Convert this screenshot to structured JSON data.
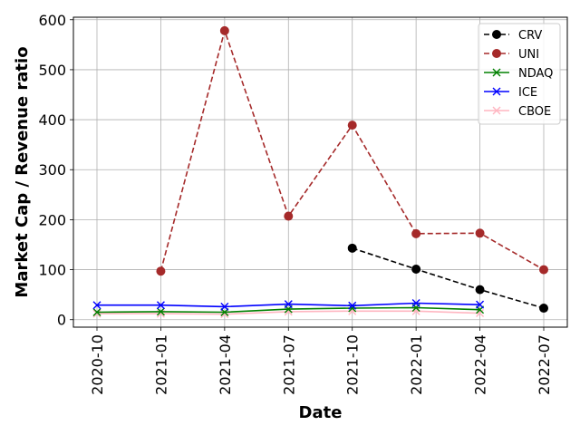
{
  "chart_data": {
    "type": "line",
    "title": "",
    "xlabel": "Date",
    "ylabel": "Market Cap / Revenue ratio",
    "x_ticks": [
      "2020-10",
      "2021-01",
      "2021-04",
      "2021-07",
      "2021-10",
      "2022-01",
      "2022-04",
      "2022-07"
    ],
    "y_ticks": [
      0,
      100,
      200,
      300,
      400,
      500,
      600
    ],
    "xlim": [
      "2020-10",
      "2022-07"
    ],
    "ylim": [
      -15,
      605
    ],
    "grid": true,
    "legend_position": "top-right",
    "series": [
      {
        "name": "CRV",
        "color": "#000000",
        "line_style": "dashed",
        "marker": "circle",
        "points": [
          {
            "x": "2021-10",
            "y": 143
          },
          {
            "x": "2022-01",
            "y": 101
          },
          {
            "x": "2022-04",
            "y": 60
          },
          {
            "x": "2022-07",
            "y": 23
          }
        ]
      },
      {
        "name": "UNI",
        "color": "#a52a2a",
        "line_style": "dashed",
        "marker": "circle",
        "points": [
          {
            "x": "2021-01",
            "y": 97
          },
          {
            "x": "2021-04",
            "y": 578
          },
          {
            "x": "2021-07",
            "y": 207
          },
          {
            "x": "2021-10",
            "y": 389
          },
          {
            "x": "2022-01",
            "y": 172
          },
          {
            "x": "2022-04",
            "y": 173
          },
          {
            "x": "2022-07",
            "y": 100
          }
        ]
      },
      {
        "name": "NDAQ",
        "color": "#008000",
        "line_style": "solid",
        "marker": "x",
        "points": [
          {
            "x": "2020-10",
            "y": 15
          },
          {
            "x": "2021-01",
            "y": 16
          },
          {
            "x": "2021-04",
            "y": 15
          },
          {
            "x": "2021-07",
            "y": 21
          },
          {
            "x": "2021-10",
            "y": 23
          },
          {
            "x": "2022-01",
            "y": 24
          },
          {
            "x": "2022-04",
            "y": 20
          }
        ]
      },
      {
        "name": "ICE",
        "color": "#0000ff",
        "line_style": "solid",
        "marker": "x",
        "points": [
          {
            "x": "2020-10",
            "y": 29
          },
          {
            "x": "2021-01",
            "y": 29
          },
          {
            "x": "2021-04",
            "y": 26
          },
          {
            "x": "2021-07",
            "y": 31
          },
          {
            "x": "2021-10",
            "y": 28
          },
          {
            "x": "2022-01",
            "y": 33
          },
          {
            "x": "2022-04",
            "y": 30
          }
        ]
      },
      {
        "name": "CBOE",
        "color": "#ffb6c1",
        "line_style": "solid",
        "marker": "x",
        "points": [
          {
            "x": "2020-10",
            "y": 12
          },
          {
            "x": "2021-01",
            "y": 12
          },
          {
            "x": "2021-04",
            "y": 11
          },
          {
            "x": "2021-07",
            "y": 16
          },
          {
            "x": "2021-10",
            "y": 17
          },
          {
            "x": "2022-01",
            "y": 17
          },
          {
            "x": "2022-04",
            "y": 13
          }
        ]
      }
    ]
  }
}
